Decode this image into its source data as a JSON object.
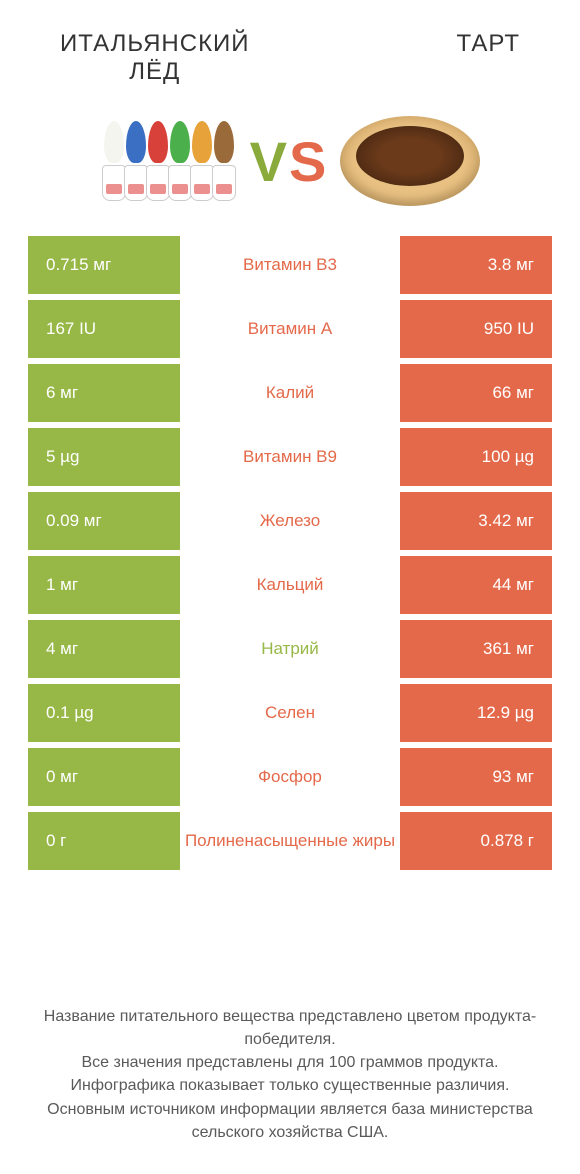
{
  "header": {
    "left_title": "ИТАЛЬЯНСКИЙ\nЛЁД",
    "right_title": "ТАРТ",
    "vs_v": "V",
    "vs_s": "S"
  },
  "colors": {
    "left": "#97b847",
    "right": "#e4694a",
    "background": "#ffffff",
    "text_dark": "#333333",
    "footer_text": "#5a5a5a"
  },
  "cone_colors": [
    "#f5f5f0",
    "#3a6fc4",
    "#d8403a",
    "#4bb04b",
    "#e8a23a",
    "#9b6a3a"
  ],
  "rows": [
    {
      "left": "0.715 мг",
      "label": "Витамин B3",
      "right": "3.8 мг",
      "winner": "right"
    },
    {
      "left": "167 IU",
      "label": "Витамин A",
      "right": "950 IU",
      "winner": "right"
    },
    {
      "left": "6 мг",
      "label": "Калий",
      "right": "66 мг",
      "winner": "right"
    },
    {
      "left": "5 µg",
      "label": "Витамин B9",
      "right": "100 µg",
      "winner": "right"
    },
    {
      "left": "0.09 мг",
      "label": "Железо",
      "right": "3.42 мг",
      "winner": "right"
    },
    {
      "left": "1 мг",
      "label": "Кальций",
      "right": "44 мг",
      "winner": "right"
    },
    {
      "left": "4 мг",
      "label": "Натрий",
      "right": "361 мг",
      "winner": "left"
    },
    {
      "left": "0.1 µg",
      "label": "Селен",
      "right": "12.9 µg",
      "winner": "right"
    },
    {
      "left": "0 мг",
      "label": "Фосфор",
      "right": "93 мг",
      "winner": "right"
    },
    {
      "left": "0 г",
      "label": "Полиненасыщенные жиры",
      "right": "0.878 г",
      "winner": "right"
    }
  ],
  "footer": {
    "line1": "Название питательного вещества представлено цветом продукта-победителя.",
    "line2": "Все значения представлены для 100 граммов продукта.",
    "line3": "Инфографика показывает только существенные различия.",
    "line4": "Основным источником информации является база министерства сельского хозяйства США."
  },
  "typography": {
    "title_fontsize": 24,
    "vs_fontsize": 56,
    "cell_fontsize": 17,
    "footer_fontsize": 16
  }
}
